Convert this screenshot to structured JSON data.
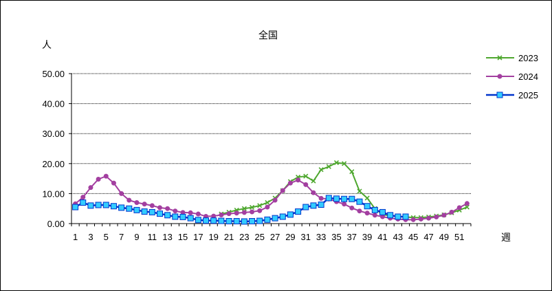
{
  "chart_data": {
    "type": "line",
    "title": "全国",
    "ylabel": "人",
    "xlabel": "週",
    "ylim": [
      0,
      50
    ],
    "yticks": [
      "0.00",
      "10.00",
      "20.00",
      "30.00",
      "40.00",
      "50.00"
    ],
    "xticks": [
      "1",
      "3",
      "5",
      "7",
      "9",
      "11",
      "13",
      "15",
      "17",
      "19",
      "21",
      "23",
      "25",
      "27",
      "29",
      "31",
      "33",
      "35",
      "37",
      "39",
      "41",
      "43",
      "45",
      "47",
      "49",
      "51"
    ],
    "grid": "horizontal dotted",
    "legend": "top-right",
    "x": [
      1,
      2,
      3,
      4,
      5,
      6,
      7,
      8,
      9,
      10,
      11,
      12,
      13,
      14,
      15,
      16,
      17,
      18,
      19,
      20,
      21,
      22,
      23,
      24,
      25,
      26,
      27,
      28,
      29,
      30,
      31,
      32,
      33,
      34,
      35,
      36,
      37,
      38,
      39,
      40,
      41,
      42,
      43,
      44,
      45,
      46,
      47,
      48,
      49,
      50,
      51,
      52
    ],
    "series": [
      {
        "name": "2023",
        "color": "#4ea72e",
        "marker": "x",
        "x": [
          20,
          21,
          22,
          23,
          24,
          25,
          26,
          27,
          28,
          29,
          30,
          31,
          32,
          33,
          34,
          35,
          36,
          37,
          38,
          39,
          40,
          41,
          42,
          43,
          44,
          45,
          46,
          47,
          48,
          49,
          50,
          51,
          52
        ],
        "values": [
          3.2,
          3.8,
          4.5,
          5.0,
          5.4,
          6.0,
          7.0,
          8.5,
          11.0,
          14.0,
          15.5,
          15.8,
          14.2,
          18.0,
          19.0,
          20.3,
          20.0,
          17.3,
          10.8,
          8.5,
          5.0,
          3.0,
          2.6,
          2.4,
          2.2,
          2.0,
          2.0,
          2.2,
          2.5,
          2.9,
          3.6,
          4.5,
          5.5
        ]
      },
      {
        "name": "2024",
        "color": "#a33fa0",
        "marker": "circle",
        "x": [
          1,
          2,
          3,
          4,
          5,
          6,
          7,
          8,
          9,
          10,
          11,
          12,
          13,
          14,
          15,
          16,
          17,
          18,
          19,
          20,
          21,
          22,
          23,
          24,
          25,
          26,
          27,
          28,
          29,
          30,
          31,
          32,
          33,
          34,
          35,
          36,
          37,
          38,
          39,
          40,
          41,
          42,
          43,
          44,
          45,
          46,
          47,
          48,
          49,
          50,
          51,
          52
        ],
        "values": [
          6.6,
          8.8,
          12.0,
          14.8,
          15.8,
          13.5,
          10.0,
          7.8,
          7.0,
          6.5,
          6.0,
          5.3,
          5.0,
          4.2,
          3.7,
          3.6,
          3.2,
          2.4,
          2.5,
          2.9,
          3.3,
          3.5,
          3.7,
          3.9,
          4.3,
          5.5,
          7.8,
          11.0,
          13.5,
          14.5,
          13.0,
          10.3,
          8.4,
          8.2,
          7.3,
          6.5,
          5.2,
          4.2,
          3.5,
          2.8,
          2.3,
          1.8,
          1.5,
          1.3,
          1.3,
          1.5,
          1.8,
          2.2,
          2.8,
          3.8,
          5.3,
          6.7
        ]
      },
      {
        "name": "2025",
        "color": "#0033cc",
        "marker": "square",
        "x": [
          1,
          2,
          3,
          4,
          5,
          6,
          7,
          8,
          9,
          10,
          11,
          12,
          13,
          14,
          15,
          16,
          17,
          18,
          19,
          20,
          21,
          22,
          23,
          24,
          25,
          26,
          27,
          28,
          29,
          30,
          31,
          32,
          33,
          34,
          35,
          36,
          37,
          38,
          39,
          40,
          41,
          42,
          43,
          44
        ],
        "values": [
          5.5,
          7.0,
          6.0,
          6.2,
          6.2,
          5.8,
          5.3,
          5.0,
          4.5,
          4.0,
          3.8,
          3.3,
          2.8,
          2.3,
          2.2,
          1.8,
          1.2,
          1.0,
          1.0,
          0.9,
          0.8,
          0.8,
          0.7,
          0.8,
          0.9,
          1.3,
          1.8,
          2.3,
          3.0,
          4.0,
          5.5,
          6.0,
          6.3,
          8.5,
          8.3,
          8.2,
          8.2,
          7.3,
          5.8,
          4.5,
          3.8,
          2.8,
          2.3,
          2.3
        ]
      }
    ]
  }
}
